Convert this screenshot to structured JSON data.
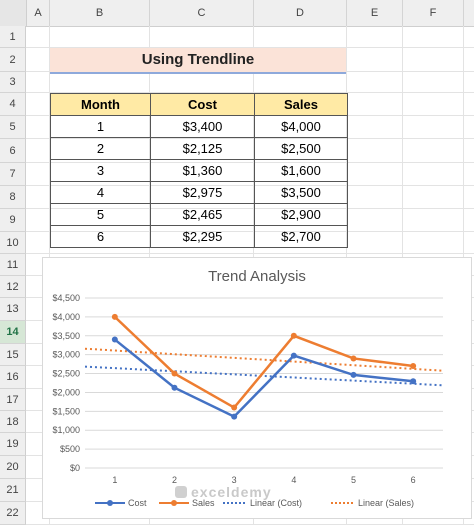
{
  "spreadsheet": {
    "columns": [
      "A",
      "B",
      "C",
      "D",
      "E",
      "F"
    ],
    "rows": [
      "1",
      "2",
      "3",
      "4",
      "5",
      "6",
      "7",
      "8",
      "9",
      "10",
      "11",
      "12",
      "13",
      "14",
      "15",
      "16",
      "17",
      "18",
      "19",
      "20",
      "21",
      "22"
    ],
    "selected_row": "14"
  },
  "sheet_title": "Using Trendline",
  "table": {
    "headers": [
      "Month",
      "Cost",
      "Sales"
    ],
    "rows": [
      [
        "1",
        "$3,400",
        "$4,000"
      ],
      [
        "2",
        "$2,125",
        "$2,500"
      ],
      [
        "3",
        "$1,360",
        "$1,600"
      ],
      [
        "4",
        "$2,975",
        "$3,500"
      ],
      [
        "5",
        "$2,465",
        "$2,900"
      ],
      [
        "6",
        "$2,295",
        "$2,700"
      ]
    ]
  },
  "watermark": "exceldemy",
  "chart_data": {
    "type": "line",
    "title": "Trend Analysis",
    "x": [
      1,
      2,
      3,
      4,
      5,
      6
    ],
    "x_tick_labels": [
      "1",
      "2",
      "3",
      "4",
      "5",
      "6"
    ],
    "y_tick_labels": [
      "$0",
      "$500",
      "$1,000",
      "$1,500",
      "$2,000",
      "$2,500",
      "$3,000",
      "$3,500",
      "$4,000",
      "$4,500"
    ],
    "ylim": [
      0,
      4500
    ],
    "grid": true,
    "legend_position": "bottom",
    "series": [
      {
        "name": "Cost",
        "values": [
          3400,
          2125,
          1360,
          2975,
          2465,
          2295
        ],
        "color": "#4472c4"
      },
      {
        "name": "Sales",
        "values": [
          4000,
          2500,
          1600,
          3500,
          2900,
          2700
        ],
        "color": "#ed7d31"
      }
    ],
    "trendlines": [
      {
        "name": "Linear (Cost)",
        "color": "#4472c4",
        "style": "dotted"
      },
      {
        "name": "Linear (Sales)",
        "color": "#ed7d31",
        "style": "dotted"
      }
    ]
  }
}
